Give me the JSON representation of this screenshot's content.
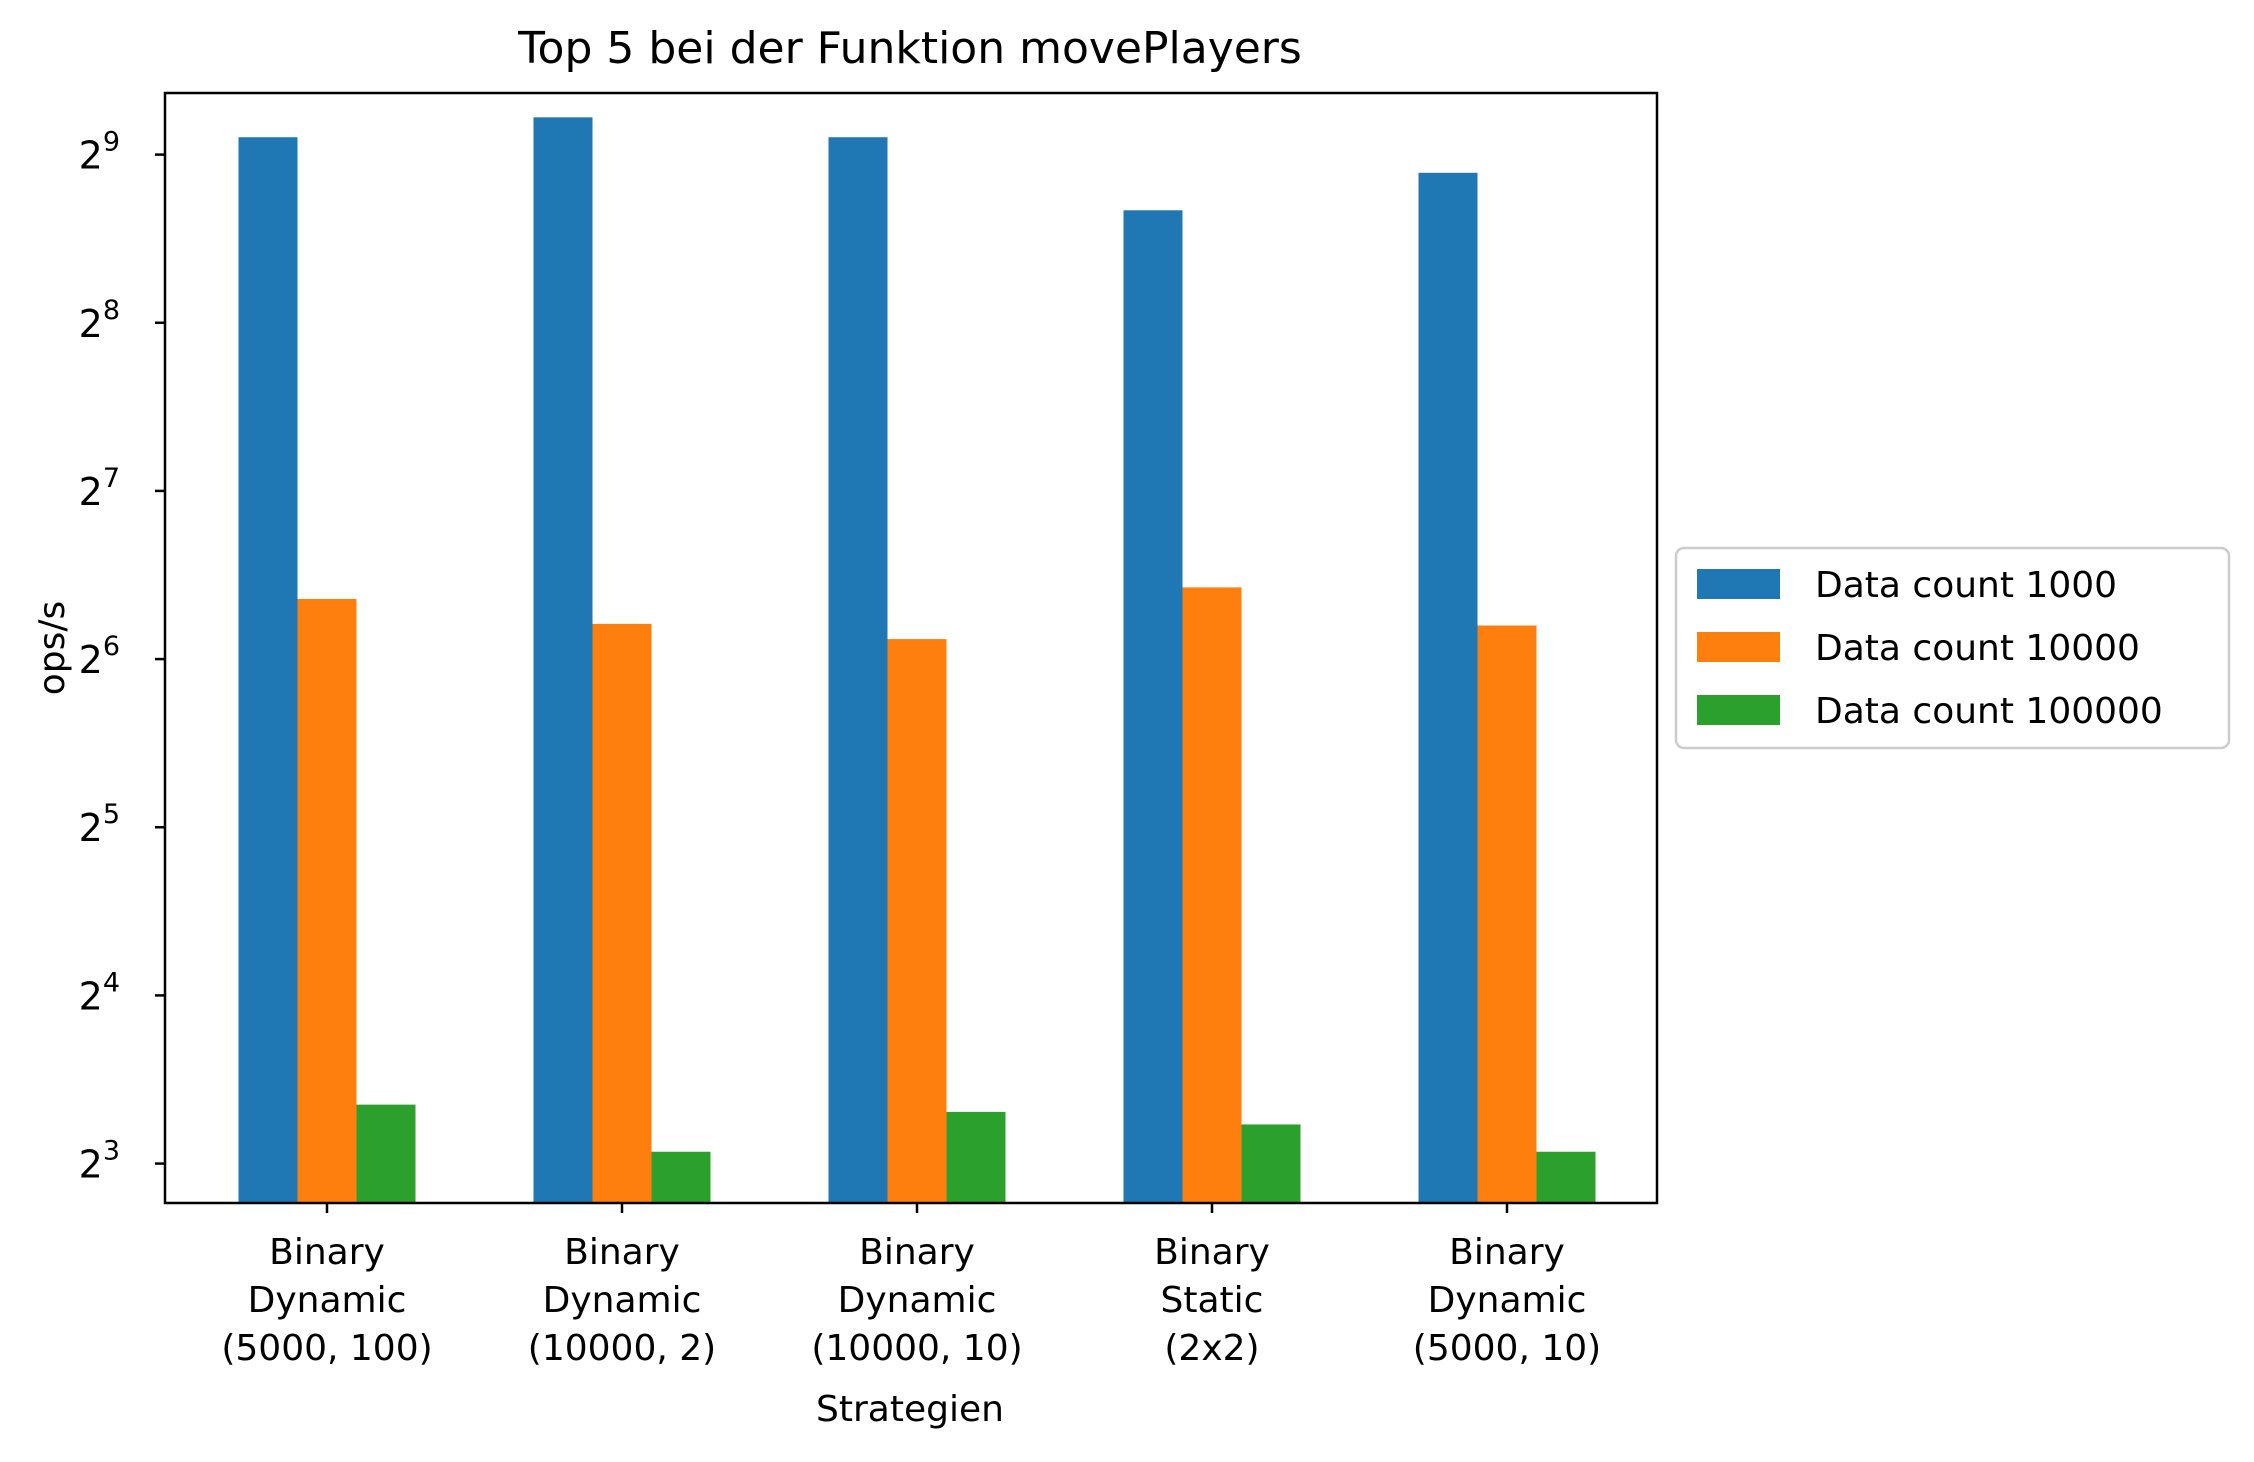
{
  "chart_data": {
    "type": "bar",
    "title": "Top 5 bei der Funktion movePlayers",
    "xlabel": "Strategien",
    "ylabel": "ops/s",
    "yscale": "log2",
    "ylim": [
      6.8,
      660
    ],
    "yticks": [
      {
        "exp": "3",
        "value": 8
      },
      {
        "exp": "4",
        "value": 16
      },
      {
        "exp": "5",
        "value": 32
      },
      {
        "exp": "6",
        "value": 64
      },
      {
        "exp": "7",
        "value": 128
      },
      {
        "exp": "8",
        "value": 256
      },
      {
        "exp": "9",
        "value": 512
      }
    ],
    "tick_base": "2",
    "categories": [
      [
        "Binary",
        "Dynamic",
        "(5000, 100)"
      ],
      [
        "Binary",
        "Dynamic",
        "(10000, 2)"
      ],
      [
        "Binary",
        "Dynamic",
        "(10000, 10)"
      ],
      [
        "Binary",
        "Static",
        "(2x2)"
      ],
      [
        "Binary",
        "Dynamic",
        "(5000, 10)"
      ]
    ],
    "series": [
      {
        "name": "Data count 1000",
        "color": "#1f77b4",
        "values": [
          550,
          597,
          550,
          407,
          475
        ]
      },
      {
        "name": "Data count 10000",
        "color": "#ff7f0e",
        "values": [
          82,
          74,
          69.5,
          86,
          73.5
        ]
      },
      {
        "name": "Data count 100000",
        "color": "#2ca02c",
        "values": [
          10.2,
          8.4,
          9.9,
          9.4,
          8.4
        ]
      }
    ],
    "legend_position": "outside right",
    "grid": false
  }
}
